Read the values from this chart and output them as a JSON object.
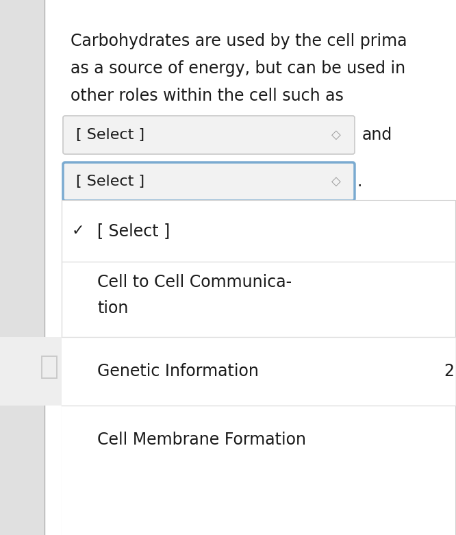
{
  "bg_color": "#e8e8e8",
  "white": "#ffffff",
  "text_color": "#1a1a1a",
  "border_color_gray": "#c8c8c8",
  "border_color_blue": "#7aaad0",
  "dropdown_bg": "#f2f2f2",
  "dropdown_open_bg": "#ffffff",
  "divider_color": "#e0e0e0",
  "sidebar_color": "#e0e0e0",
  "para_text_line1": "Carbohydrates are used by the cell prima",
  "para_text_line2": "as a source of energy, but can be used in",
  "para_text_line3": "other roles within the cell such as",
  "select_text": "[ Select ]",
  "and_text": "and",
  "dot_text": ".",
  "checkmark": "✓",
  "menu_item1": "[ Select ]",
  "menu_item2_line1": "Cell to Cell Communica-",
  "menu_item2_line2": "tion",
  "menu_item3": "Genetic Information",
  "menu_item4": "Cell Membrane Formation",
  "num_label": "2",
  "font_size_para": 17,
  "font_size_select": 16,
  "font_size_menu": 17,
  "figsize": [
    6.66,
    7.81
  ],
  "dpi": 100
}
